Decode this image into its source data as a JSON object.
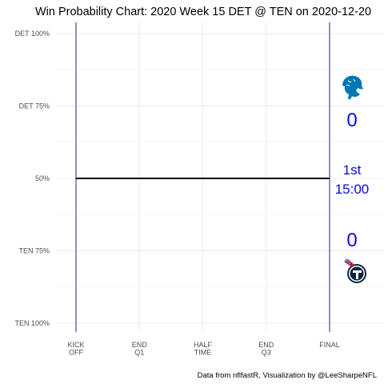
{
  "chart_data": {
    "type": "line",
    "title": "Win Probability Chart: 2020 Week 15 DET @ TEN on 2020-12-20",
    "caption": "Data from nflfastR, Visualization by @LeeSharpeNFL",
    "xlabel": "",
    "ylabel": "",
    "x_tick_labels": [
      [
        "KICK",
        "OFF"
      ],
      [
        "END",
        "Q1"
      ],
      [
        "HALF",
        "TIME"
      ],
      [
        "END",
        "Q3"
      ],
      [
        "FINAL"
      ]
    ],
    "x_tick_values": [
      0,
      900,
      1800,
      2700,
      3600
    ],
    "xlim": [
      0,
      3600
    ],
    "y_tick_labels": [
      "DET 100%",
      "DET 75%",
      "50%",
      "TEN 75%",
      "TEN 100%"
    ],
    "y_tick_values": [
      1.0,
      0.75,
      0.5,
      0.25,
      0.0
    ],
    "ylim": [
      0,
      1
    ],
    "grid": true,
    "series": [
      {
        "x": [
          0,
          3600
        ],
        "y": [
          0.5,
          0.5
        ],
        "color": "#000000"
      }
    ],
    "boundary_lines": [
      0,
      3600
    ],
    "boundary_color": "#1f2a6b",
    "home_team": "TEN",
    "away_team": "DET",
    "away_score": "0",
    "home_score": "0",
    "quarter": "1st",
    "clock": "15:00",
    "label_color": "#0a0adc",
    "away_logo": "detroit-lion-logo",
    "home_logo": "tennessee-titans-logo",
    "away_logo_color": "#0076b6",
    "home_logo_colors": [
      "#0c2340",
      "#4b92db",
      "#c8102e"
    ]
  }
}
